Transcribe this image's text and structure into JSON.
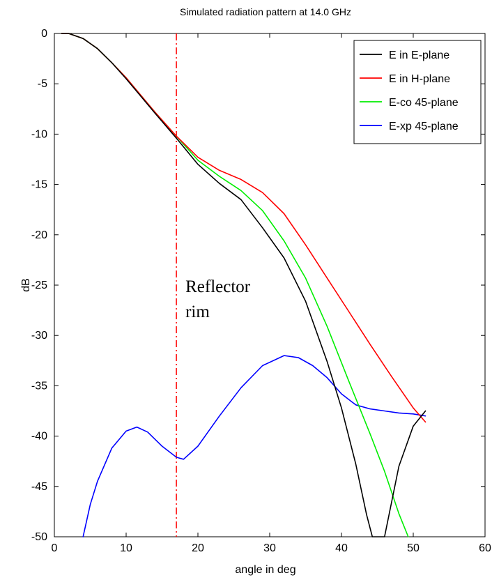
{
  "chart_data": {
    "type": "line",
    "title": "Simulated radiation pattern at 14.0 GHz",
    "xlabel": "angle in deg",
    "ylabel": "dB",
    "xlim": [
      0,
      60
    ],
    "ylim": [
      -50,
      0
    ],
    "xticks": [
      0,
      10,
      20,
      30,
      40,
      50,
      60
    ],
    "yticks": [
      0,
      -5,
      -10,
      -15,
      -20,
      -25,
      -30,
      -35,
      -40,
      -45,
      -50
    ],
    "grid": false,
    "legend_position": "top-right",
    "series": [
      {
        "name": "E in E-plane",
        "color": "#000000",
        "x": [
          1,
          2,
          4,
          6,
          8,
          10,
          12,
          14,
          17,
          20,
          23,
          26,
          29,
          32,
          35,
          38,
          40,
          42,
          43.5,
          44.3,
          45,
          46,
          48,
          50,
          51.7
        ],
        "y": [
          0,
          0,
          -0.5,
          -1.5,
          -2.9,
          -4.5,
          -6.2,
          -7.9,
          -10.4,
          -13,
          -14.9,
          -16.5,
          -19.3,
          -22.3,
          -26.6,
          -32.6,
          -37.2,
          -42.8,
          -47.8,
          -50,
          -50,
          -50,
          -43,
          -39,
          -37.5
        ]
      },
      {
        "name": "E in H-plane",
        "color": "#ff0000",
        "x": [
          1,
          2,
          4,
          6,
          8,
          10,
          12,
          14,
          17,
          20,
          23,
          26,
          29,
          32,
          35,
          38,
          41,
          44,
          47,
          50,
          51.7
        ],
        "y": [
          0,
          0,
          -0.5,
          -1.5,
          -2.9,
          -4.4,
          -6.1,
          -7.8,
          -10.2,
          -12.3,
          -13.6,
          -14.5,
          -15.8,
          -17.9,
          -21,
          -24.3,
          -27.6,
          -30.9,
          -34.1,
          -37.2,
          -38.6
        ]
      },
      {
        "name": "E-co 45-plane",
        "color": "#00ee00",
        "x": [
          1,
          2,
          4,
          6,
          8,
          10,
          12,
          14,
          17,
          20,
          23,
          26,
          29,
          32,
          35,
          38,
          41,
          44,
          46,
          48,
          49.3
        ],
        "y": [
          0,
          0,
          -0.5,
          -1.5,
          -2.9,
          -4.4,
          -6.1,
          -7.8,
          -10.2,
          -12.6,
          -14.2,
          -15.6,
          -17.6,
          -20.6,
          -24.3,
          -29.1,
          -34.5,
          -39.8,
          -43.5,
          -47.7,
          -50
        ]
      },
      {
        "name": "E-xp 45-plane",
        "color": "#0000ff",
        "x": [
          4,
          5,
          6,
          8,
          10,
          11.5,
          13,
          15,
          17,
          18,
          20,
          23,
          26,
          29,
          32,
          34,
          36,
          38,
          40,
          42,
          44,
          46,
          48,
          50,
          51.7
        ],
        "y": [
          -50,
          -46.8,
          -44.5,
          -41.2,
          -39.5,
          -39.1,
          -39.6,
          -41,
          -42.1,
          -42.3,
          -41,
          -38,
          -35.2,
          -33,
          -32,
          -32.2,
          -33,
          -34.2,
          -35.8,
          -36.9,
          -37.3,
          -37.5,
          -37.7,
          -37.8,
          -38
        ]
      }
    ],
    "annotations": [
      {
        "type": "vline",
        "x": 17,
        "color": "#ff0000",
        "style": "dash-dot",
        "label": "Reflector rim"
      }
    ]
  }
}
